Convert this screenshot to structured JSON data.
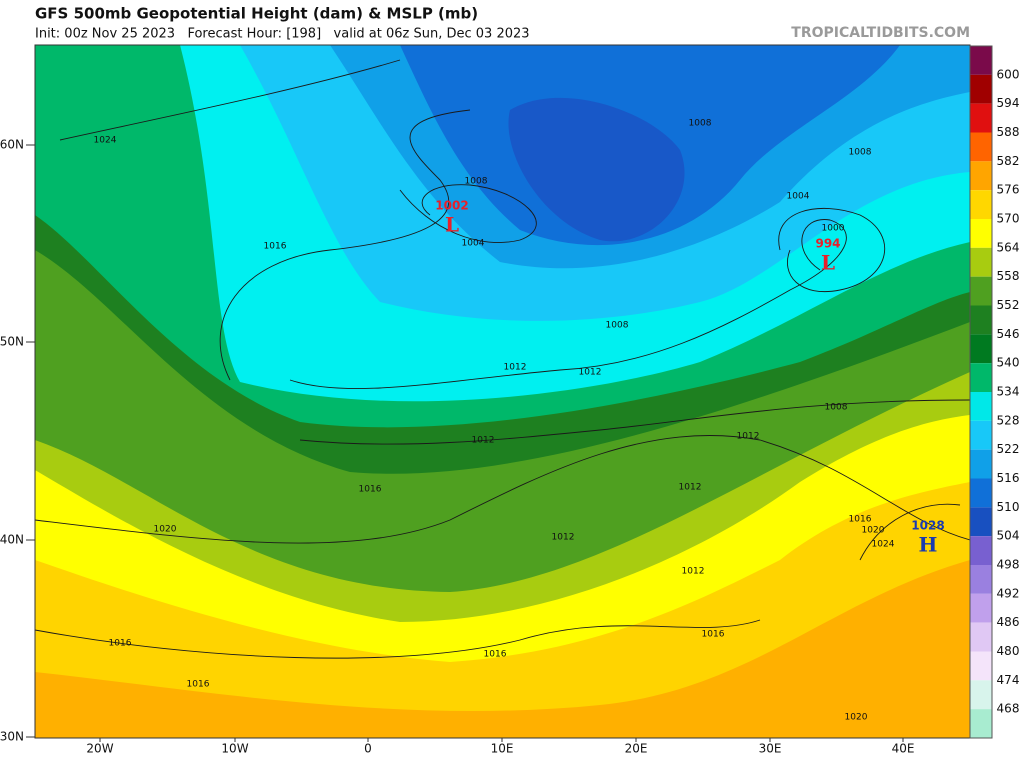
{
  "header": {
    "title": "GFS 500mb Geopotential Height (dam) & MSLP (mb)",
    "subtitle": "Init: 00z Nov 25 2023   Forecast Hour: [198]   valid at 06z Sun, Dec 03 2023",
    "watermark": "TROPICALTIDBITS.COM"
  },
  "map": {
    "lat_labels": [
      "60N",
      "50N",
      "40N",
      "30N"
    ],
    "lon_labels": [
      "20W",
      "10W",
      "0",
      "10E",
      "20E",
      "30E",
      "40E"
    ],
    "isobar_labels": [
      1024,
      1016,
      1008,
      1004,
      1008,
      1008,
      1004,
      1000,
      1008,
      1012,
      1012,
      1008,
      1012,
      1012,
      1016,
      1012,
      1016,
      1020,
      1024,
      1020,
      1012,
      1012,
      1016,
      1016,
      1016,
      1016,
      1020
    ],
    "centers": [
      {
        "value": 1002,
        "letter": "L",
        "color": "#e8202a"
      },
      {
        "value": 994,
        "letter": "L",
        "color": "#e8202a"
      },
      {
        "value": 1028,
        "letter": "H",
        "color": "#1a3ab0"
      }
    ]
  },
  "colorbar": {
    "labels": [
      600,
      594,
      588,
      582,
      576,
      570,
      564,
      558,
      552,
      546,
      540,
      534,
      528,
      522,
      516,
      510,
      504,
      498,
      492,
      486,
      480,
      474,
      468
    ],
    "colors": [
      "#7a0a4a",
      "#a00000",
      "#e01010",
      "#ff6400",
      "#ffa500",
      "#ffd700",
      "#ffff00",
      "#a8cc10",
      "#4fa020",
      "#1e8020",
      "#007a20",
      "#00b86a",
      "#00e8e8",
      "#18c8f8",
      "#10a0e8",
      "#1070d8",
      "#1850c0",
      "#7860d0",
      "#9a80e0",
      "#c0a0ec",
      "#e0c8f4",
      "#f4e4fa",
      "#d8f4ec",
      "#a8ecd0"
    ]
  }
}
